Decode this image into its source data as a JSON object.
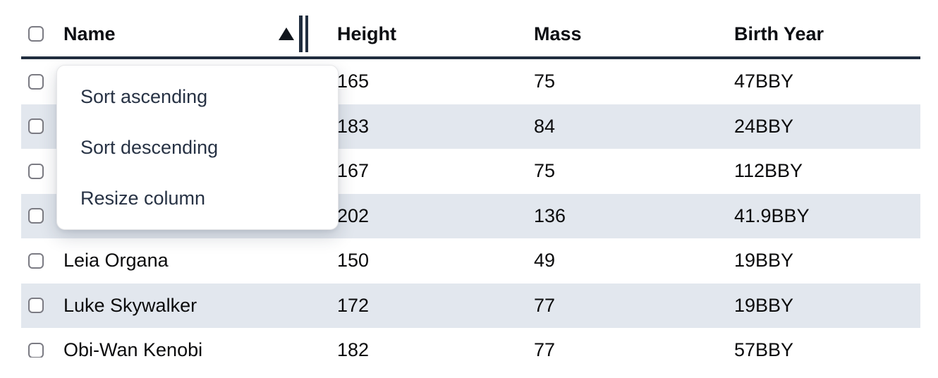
{
  "table": {
    "columns": [
      {
        "id": "name",
        "label": "Name"
      },
      {
        "id": "height",
        "label": "Height"
      },
      {
        "id": "mass",
        "label": "Mass"
      },
      {
        "id": "birth_year",
        "label": "Birth Year"
      }
    ],
    "sort": {
      "column": "Name",
      "direction": "ascending",
      "icon": "sort-ascending-icon"
    },
    "rows": [
      {
        "name": "",
        "height": "165",
        "mass": "75",
        "birth_year": "47BBY"
      },
      {
        "name": "",
        "height": "183",
        "mass": "84",
        "birth_year": "24BBY"
      },
      {
        "name": "",
        "height": "167",
        "mass": "75",
        "birth_year": "112BBY"
      },
      {
        "name": "",
        "height": "202",
        "mass": "136",
        "birth_year": "41.9BBY"
      },
      {
        "name": "Leia Organa",
        "height": "150",
        "mass": "49",
        "birth_year": "19BBY"
      },
      {
        "name": "Luke Skywalker",
        "height": "172",
        "mass": "77",
        "birth_year": "19BBY"
      },
      {
        "name": "Obi-Wan Kenobi",
        "height": "182",
        "mass": "77",
        "birth_year": "57BBY"
      }
    ]
  },
  "menu": {
    "items": [
      {
        "label": "Sort ascending"
      },
      {
        "label": "Sort descending"
      },
      {
        "label": "Resize column"
      }
    ]
  },
  "colors": {
    "stripe": "#e2e7ee",
    "header_border": "#212e3f",
    "menu_text": "#273244",
    "body_text": "#0b0b0c",
    "checkbox_border": "#7b7b83"
  }
}
